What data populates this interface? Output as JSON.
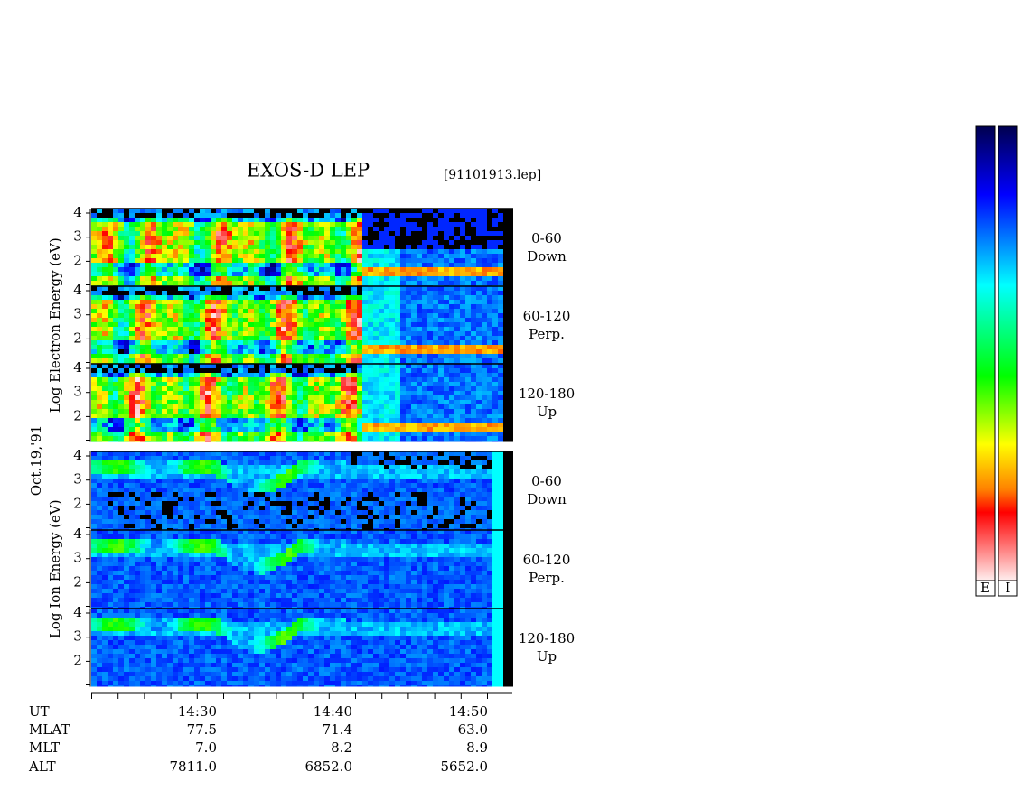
{
  "header": {
    "title": "EXOS-D LEP",
    "file": "[91101913.lep]",
    "date": "Oct.19,'91"
  },
  "groups": [
    {
      "axis_label": "Log Electron Energy (eV)",
      "panels": [
        {
          "yticks": [
            "4",
            "3",
            "2"
          ],
          "angle": "0-60",
          "direction": "Down"
        },
        {
          "yticks": [
            "4",
            "3",
            "2"
          ],
          "angle": "60-120",
          "direction": "Perp."
        },
        {
          "yticks": [
            "4",
            "3",
            "2"
          ],
          "angle": "120-180",
          "direction": "Up"
        }
      ]
    },
    {
      "axis_label": "Log Ion Energy (eV)",
      "panels": [
        {
          "yticks": [
            "4",
            "3",
            "2"
          ],
          "angle": "0-60",
          "direction": "Down"
        },
        {
          "yticks": [
            "4",
            "3",
            "2"
          ],
          "angle": "60-120",
          "direction": "Perp."
        },
        {
          "yticks": [
            "4",
            "3",
            "2"
          ],
          "angle": "120-180",
          "direction": "Up"
        }
      ]
    }
  ],
  "orbit_table": {
    "row_labels": [
      "UT",
      "MLAT",
      "MLT",
      "ALT"
    ],
    "columns": [
      [
        "14:30",
        "77.5",
        "7.0",
        "7811.0"
      ],
      [
        "14:40",
        "71.4",
        "8.2",
        "6852.0"
      ],
      [
        "14:50",
        "63.0",
        "8.9",
        "5652.0"
      ]
    ]
  },
  "colorbars": [
    "E",
    "I"
  ]
}
